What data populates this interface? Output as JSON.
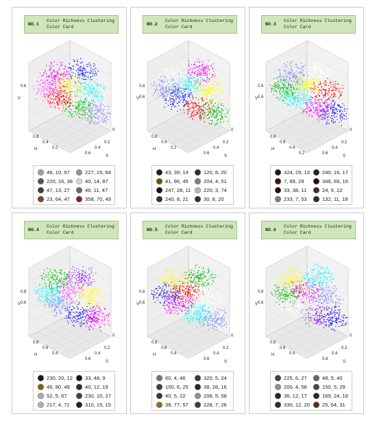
{
  "panels": [
    {
      "number": "NO.1",
      "title_line1": "Color Richness Clustering",
      "title_line2": "Color Card",
      "clusters": [
        "#ff00ff",
        "#1a1aff",
        "#ffff00",
        "#00ffff",
        "#ff0000",
        "#00c000",
        "#8888ff",
        "#ff66ff"
      ],
      "axis": {
        "z_label": "V",
        "z_ticks": [
          "0.6"
        ],
        "h_label": "H",
        "h_ticks": [
          "0.8",
          "0.4",
          "0.2"
        ],
        "s_label": "S",
        "s_ticks": [
          "0.6",
          "0.4",
          "0.2"
        ],
        "zero": "0"
      },
      "swatches": [
        {
          "label": "46, 10, 67",
          "color": "#a99b94"
        },
        {
          "label": "227, 15, 64",
          "color": "#8c93a6"
        },
        {
          "label": "220, 16, 38",
          "color": "#4f5561"
        },
        {
          "label": "40, 14, 87",
          "color": "#dfd6c9"
        },
        {
          "label": "47, 13, 27",
          "color": "#453f37"
        },
        {
          "label": "46, 11, 47",
          "color": "#6f6a61"
        },
        {
          "label": "23, 64, 47",
          "color": "#77452b"
        },
        {
          "label": "358, 70, 49",
          "color": "#7e2326"
        }
      ]
    },
    {
      "number": "NO.2",
      "title_line1": "Color Richness Clustering",
      "title_line2": "Color Card",
      "clusters": [
        "#ff00ff",
        "#00ffff",
        "#ffff00",
        "#1a1aff",
        "#ff0000",
        "#00c000",
        "#8888ff",
        "#ffffff"
      ],
      "axis": {
        "z_label": "V",
        "z_ticks": [
          "0.8",
          "0.6"
        ],
        "h_label": "H",
        "h_ticks": [
          "0.8",
          "0.4",
          "0.2"
        ],
        "s_label": "S",
        "s_ticks": [
          "0.6",
          "0.4",
          "0.2"
        ],
        "zero": "0"
      },
      "swatches": [
        {
          "label": "43, 39, 14",
          "color": "#241f16"
        },
        {
          "label": "120, 8, 20",
          "color": "#303331"
        },
        {
          "label": "41, 96, 45",
          "color": "#735002"
        },
        {
          "label": "204, 4, 51",
          "color": "#7c8083"
        },
        {
          "label": "247, 28, 11",
          "color": "#17151c"
        },
        {
          "label": "220, 3, 74",
          "color": "#b6b8bc"
        },
        {
          "label": "240, 8, 21",
          "color": "#313136"
        },
        {
          "label": "30, 8, 20",
          "color": "#33302f"
        }
      ]
    },
    {
      "number": "NO.3",
      "title_line1": "Color Richness Clustering",
      "title_line2": "Color Card",
      "clusters": [
        "#ffff00",
        "#ff0000",
        "#00ffff",
        "#ff00ff",
        "#1a1aff",
        "#00c000",
        "#8888ff",
        "#ffffff"
      ],
      "axis": {
        "z_label": "V",
        "z_ticks": [
          "0.8",
          "0.6"
        ],
        "h_label": "H",
        "h_ticks": [
          "0.8",
          "0.6",
          "0.4",
          "0.2"
        ],
        "s_label": "S",
        "s_ticks": [
          "0.6",
          "0.4",
          "0.2"
        ],
        "zero": "0"
      },
      "swatches": [
        {
          "label": "324, 29, 13",
          "color": "#211719"
        },
        {
          "label": "240, 16, 17",
          "color": "#24242b"
        },
        {
          "label": "7, 89, 29",
          "color": "#4a0d08"
        },
        {
          "label": "346, 69, 16",
          "color": "#290d13"
        },
        {
          "label": "33, 38, 11",
          "color": "#1c1711"
        },
        {
          "label": "24, 9, 22",
          "color": "#383432"
        },
        {
          "label": "233, 7, 53",
          "color": "#7d7e87"
        },
        {
          "label": "132, 11, 18",
          "color": "#292e2a"
        }
      ]
    },
    {
      "number": "NO.4",
      "title_line1": "Color Richness Clustering",
      "title_line2": "Color Card",
      "clusters": [
        "#ffff00",
        "#8888ff",
        "#1a1aff",
        "#ff00ff",
        "#00ffff",
        "#00c000",
        "#9933ff",
        "#ff66ff"
      ],
      "axis": {
        "z_label": "V",
        "z_ticks": [
          "0.8",
          "0.6"
        ],
        "h_label": "H",
        "h_ticks": [
          "0.8",
          "0.6",
          "0.4"
        ],
        "s_label": "S",
        "s_ticks": [
          "0.6",
          "0.4",
          "0.2"
        ],
        "zero": "0"
      },
      "swatches": [
        {
          "label": "230, 20, 12",
          "color": "#181a1f"
        },
        {
          "label": "33, 48, 9",
          "color": "#17120c"
        },
        {
          "label": "46, 90, 49",
          "color": "#7d6410"
        },
        {
          "label": "40, 12, 19",
          "color": "#302d2a"
        },
        {
          "label": "52, 5, 67",
          "color": "#abaaa2"
        },
        {
          "label": "230, 10, 27",
          "color": "#3e4045"
        },
        {
          "label": "217, 4, 71",
          "color": "#adafb5"
        },
        {
          "label": "310, 15, 15",
          "color": "#262024"
        }
      ]
    },
    {
      "number": "NO.5",
      "title_line1": "Color Richness Clustering",
      "title_line2": "Color Card",
      "clusters": [
        "#ff00ff",
        "#00ffff",
        "#8888ff",
        "#1a1aff",
        "#ffff00",
        "#00c000",
        "#ff0000",
        "#ffffff"
      ],
      "axis": {
        "z_label": "V",
        "z_ticks": [
          "0.8",
          "0.6"
        ],
        "h_label": "H",
        "h_ticks": [
          "0.8",
          "0.6",
          "0.4"
        ],
        "s_label": "S",
        "s_ticks": [
          "0.6",
          "0.4",
          "0.2"
        ],
        "zero": "0"
      },
      "swatches": [
        {
          "label": "60, 4, 46",
          "color": "#757570"
        },
        {
          "label": "320, 5, 24",
          "color": "#3d3a3c"
        },
        {
          "label": "150, 6, 25",
          "color": "#3c403e"
        },
        {
          "label": "38, 26, 16",
          "color": "#29241e"
        },
        {
          "label": "40, 5, 22",
          "color": "#393735"
        },
        {
          "label": "206, 5, 58",
          "color": "#8d9194"
        },
        {
          "label": "38, 77, 57",
          "color": "#91702a"
        },
        {
          "label": "228, 7, 26",
          "color": "#3d3e42"
        }
      ]
    },
    {
      "number": "NO.6",
      "title_line1": "Color Richness Clustering",
      "title_line2": "Color Card",
      "clusters": [
        "#9933ff",
        "#1a1aff",
        "#00c000",
        "#ffff00",
        "#00ffff",
        "#ff00ff",
        "#8888ff",
        "#ffffff"
      ],
      "axis": {
        "z_label": "V",
        "z_ticks": [
          "0.8",
          "0.6"
        ],
        "h_label": "H",
        "h_ticks": [
          "0.8",
          "0.6",
          "0.4"
        ],
        "s_label": "S",
        "s_ticks": [
          "0.6",
          "0.4",
          "0.2"
        ],
        "zero": "0"
      },
      "swatches": [
        {
          "label": "225, 6, 27",
          "color": "#404247"
        },
        {
          "label": "48, 5, 40",
          "color": "#666461"
        },
        {
          "label": "200, 4, 58",
          "color": "#8d9194"
        },
        {
          "label": "150, 5, 29",
          "color": "#464b48"
        },
        {
          "label": "36, 12, 17",
          "color": "#2b2825"
        },
        {
          "label": "169, 24, 18",
          "color": "#232e2c"
        },
        {
          "label": "330, 12, 20",
          "color": "#332d30"
        },
        {
          "label": "25, 64, 31",
          "color": "#4f2e1c"
        }
      ]
    }
  ]
}
